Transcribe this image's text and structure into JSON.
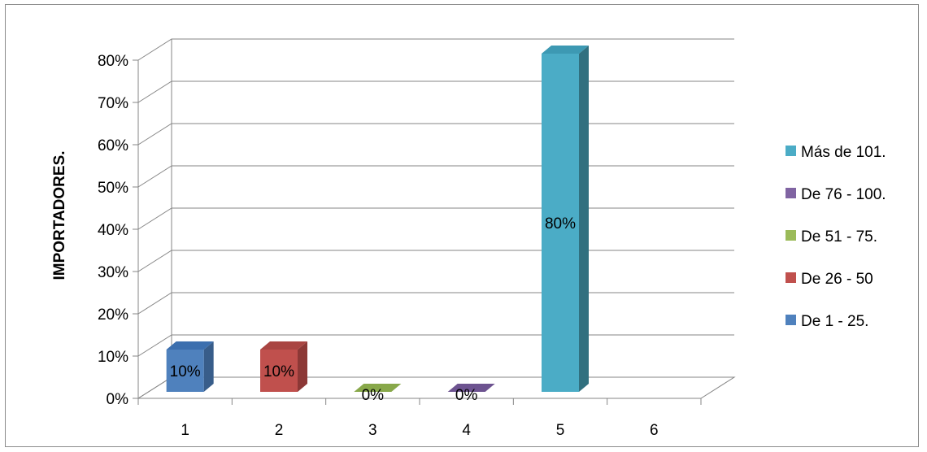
{
  "chart_data": {
    "type": "bar",
    "style": "3d-clustered-column",
    "ylabel": "IMPORTADORES.",
    "xlabel": "",
    "categories": [
      "1",
      "2",
      "3",
      "4",
      "5",
      "6"
    ],
    "ylim": [
      0,
      0.8
    ],
    "yticks": [
      0,
      0.1,
      0.2,
      0.3,
      0.4,
      0.5,
      0.6,
      0.7,
      0.8
    ],
    "ytick_labels": [
      "0%",
      "10%",
      "20%",
      "30%",
      "40%",
      "50%",
      "60%",
      "70%",
      "80%"
    ],
    "grid": true,
    "legend_position": "right",
    "series": [
      {
        "name": "De 1 - 25.",
        "category": "1",
        "value": 0.1,
        "label": "10%",
        "color": "#4F81BD",
        "top_color": "#3c6fae",
        "side_color": "#385d8a"
      },
      {
        "name": "De 26 - 50",
        "category": "2",
        "value": 0.1,
        "label": "10%",
        "color": "#C0504D",
        "top_color": "#a94542",
        "side_color": "#8c3836"
      },
      {
        "name": "De 51 - 75.",
        "category": "3",
        "value": 0,
        "label": "0%",
        "color": "#9BBB59",
        "top_color": "#88a84a",
        "side_color": "#71893f"
      },
      {
        "name": "De 76 - 100.",
        "category": "4",
        "value": 0,
        "label": "0%",
        "color": "#8064A2",
        "top_color": "#6d5390",
        "side_color": "#5c4776"
      },
      {
        "name": "Más de 101.",
        "category": "5",
        "value": 0.8,
        "label": "80%",
        "color": "#4BACC6",
        "top_color": "#3d99b3",
        "side_color": "#31707f"
      }
    ],
    "legend_order": [
      "Más de 101.",
      "De 76 - 100.",
      "De 51 - 75.",
      "De 26 - 50",
      "De 1 - 25."
    ]
  }
}
